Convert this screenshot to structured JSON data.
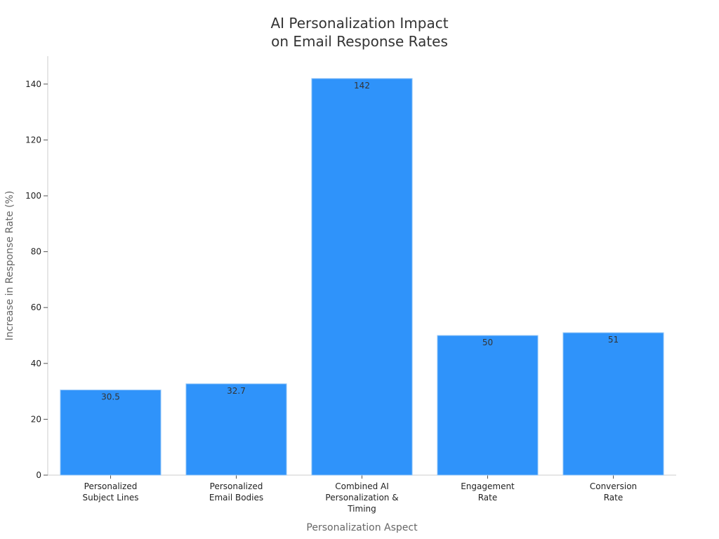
{
  "chart_data": {
    "type": "bar",
    "title": "AI Personalization Impact\non Email Response Rates",
    "xlabel": "Personalization Aspect",
    "ylabel": "Increase in Response Rate (%)",
    "categories": [
      "Personalized\nSubject Lines",
      "Personalized\nEmail Bodies",
      "Combined AI\nPersonalization &\nTiming",
      "Engagement\nRate",
      "Conversion\nRate"
    ],
    "values": [
      30.5,
      32.7,
      142,
      50,
      51
    ],
    "data_labels": [
      "30.5",
      "32.7",
      "142",
      "50",
      "51"
    ],
    "ylim": [
      0,
      150
    ],
    "yticks": [
      0,
      20,
      40,
      60,
      80,
      100,
      120,
      140
    ],
    "grid": false,
    "bar_color": "#2f93fa",
    "bar_edge_color": "#9ecbf7"
  }
}
